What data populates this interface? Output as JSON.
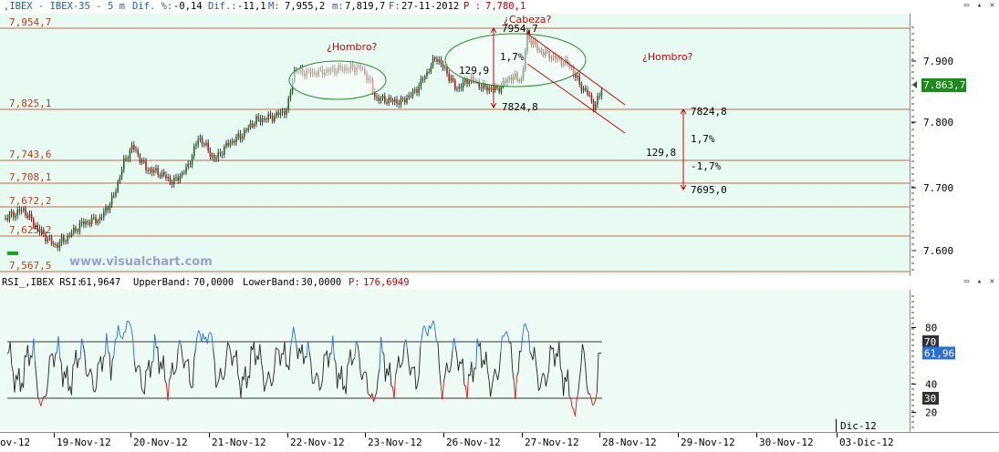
{
  "price_header": {
    "symbol": ",IBEX - IBEX-35 -",
    "timeframe": "5 m",
    "dif_pct_label": "Dif. %:",
    "dif_pct": "-0,14",
    "dif_label": "Dif.:",
    "dif": "-11,1",
    "max_label": "M:",
    "max": "7,955,2",
    "min_label": "m:",
    "min": "7,819,7",
    "date_label": "F:",
    "date": "27-11-2012",
    "p_label": "P :",
    "p": "7,780,1"
  },
  "rsi_header": {
    "name": "RSI_,IBEX RSI:",
    "rsi": "61,9647",
    "upper_label": "UpperBand:",
    "upper": "70,0000",
    "lower_label": "LowerBand:",
    "lower": "30,0000",
    "p_label": "P:",
    "p": "176,6949"
  },
  "levels": [
    "7,954,7",
    "7,825,1",
    "7,743,6",
    "7,708,1",
    "7,6?2,2",
    "7,625,2",
    "7,567,5"
  ],
  "price_axis": [
    "7.900",
    "7.800",
    "7.700",
    "7.600"
  ],
  "price_current": "7.863,7",
  "rsi_axis": [
    "80",
    "40",
    "20"
  ],
  "rsi_bands": [
    "70",
    "30"
  ],
  "rsi_current": "61,96",
  "annotations": {
    "left_shoulder": "¿Hombro?",
    "head": "¿Cabeza?",
    "right_shoulder": "¿Hombro?",
    "top_value": "7954,7",
    "bottom_value": "7824,8",
    "pct": "1,7%",
    "range": "129,9",
    "target_top": "7824,8",
    "target_pct_up": "1,7%",
    "target_range": "129,8",
    "target_pct_down": "-1,7%",
    "target_bottom": "7695,0"
  },
  "watermark": "www.visualchart.com",
  "dates": [
    "ov-12",
    "19-Nov-12",
    "20-Nov-12",
    "21-Nov-12",
    "22-Nov-12",
    "23-Nov-12",
    "26-Nov-12",
    "27-Nov-12",
    "28-Nov-12",
    "29-Nov-12",
    "30-Nov-12",
    "03-Dic-12"
  ],
  "dates_upper": "Dic-12",
  "colors": {
    "plot_bg": "#e8fbf2",
    "level_line": "#c46a4a",
    "level_text": "#c43a18",
    "bull_candle": "#1a6b1a",
    "bear_candle": "#cc1111",
    "annotation": "#cc0000",
    "ellipse": "#2a8a2a",
    "rsi_line": "#222222",
    "rsi_over": "#1e6fe0",
    "rsi_under": "#dd1111",
    "current_price_bg": "#1e8a1e",
    "current_rsi_bg": "#2a6fd6"
  }
}
